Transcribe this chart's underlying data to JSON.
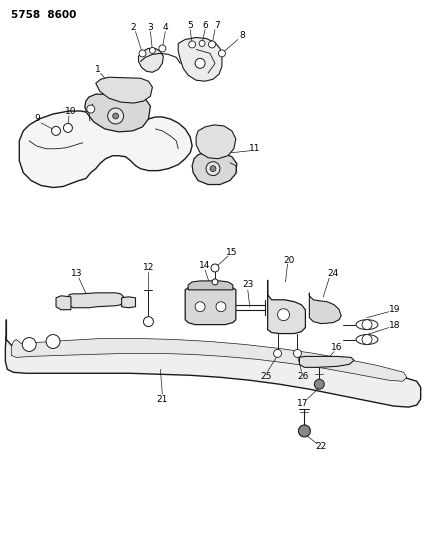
{
  "title": "5758  8600",
  "background_color": "#ffffff",
  "line_color": "#1a1a1a",
  "text_color": "#000000",
  "figsize": [
    4.28,
    5.33
  ],
  "dpi": 100
}
